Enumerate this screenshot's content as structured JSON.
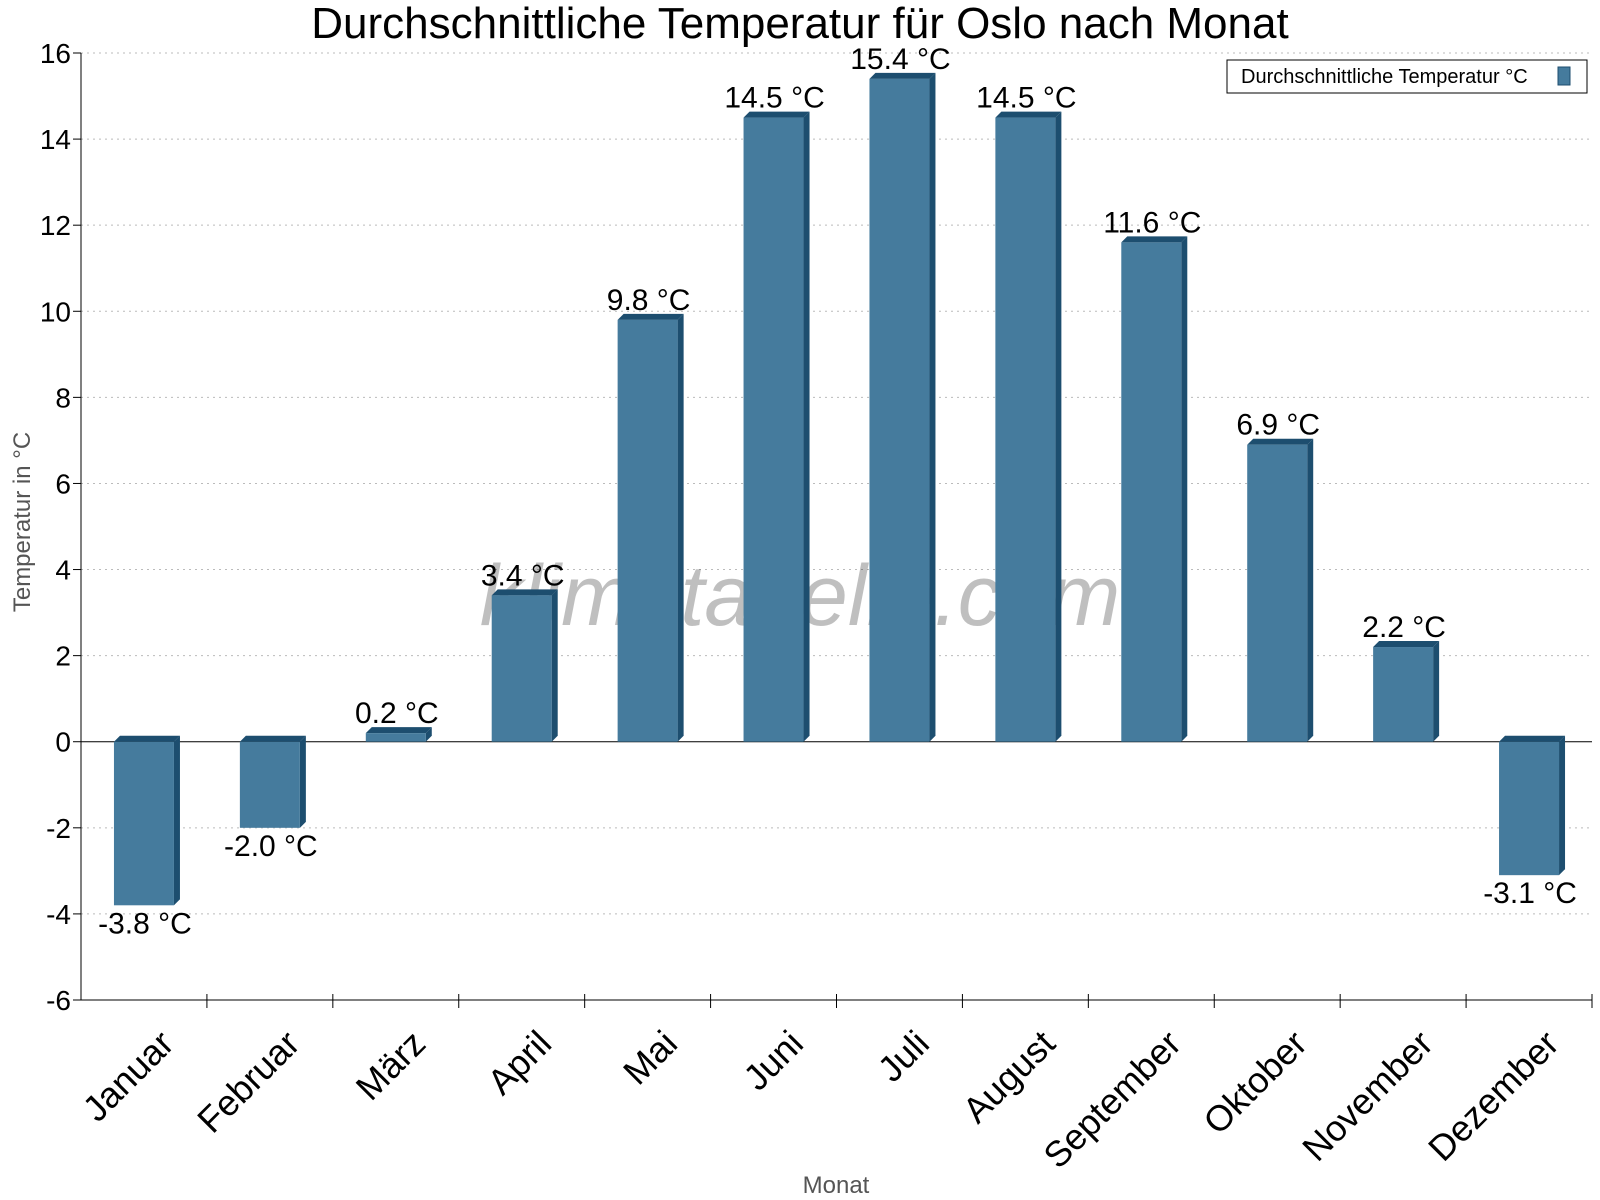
{
  "chart_data": {
    "type": "bar",
    "title": "Durchschnittliche Temperatur für Oslo nach Monat",
    "xlabel": "Monat",
    "ylabel": "Temperatur in °C",
    "categories": [
      "Januar",
      "Februar",
      "März",
      "April",
      "Mai",
      "Juni",
      "Juli",
      "August",
      "September",
      "Oktober",
      "November",
      "Dezember"
    ],
    "series": [
      {
        "name": "Durchschnittliche Temperatur °C",
        "values": [
          -3.8,
          -2.0,
          0.2,
          3.4,
          9.8,
          14.5,
          15.4,
          14.5,
          11.6,
          6.9,
          2.2,
          -3.1
        ],
        "labels": [
          "-3.8 °C",
          "-2.0 °C",
          "0.2 °C",
          "3.4 °C",
          "9.8 °C",
          "14.5 °C",
          "15.4 °C",
          "14.5 °C",
          "11.6 °C",
          "6.9 °C",
          "2.2 °C",
          "-3.1 °C"
        ],
        "color": "#457b9d",
        "shade_color": "#1d4e6f"
      }
    ],
    "yticks": [
      -6,
      -4,
      -2,
      0,
      2,
      4,
      6,
      8,
      10,
      12,
      14,
      16
    ],
    "ylim": [
      -6,
      16
    ],
    "grid": true,
    "legend": "top-right"
  },
  "watermark": "klimatabelle.com"
}
